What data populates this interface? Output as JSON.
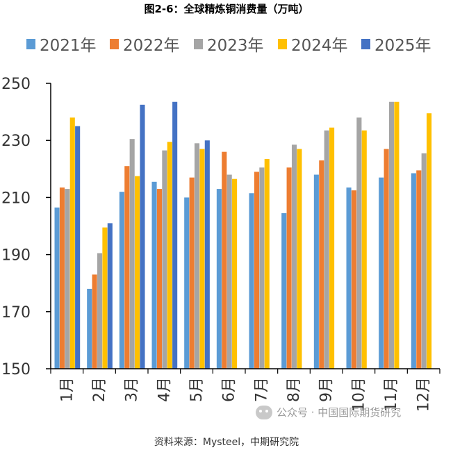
{
  "chart_data": {
    "type": "bar",
    "title": "图2-6：全球精炼铜消费量（万吨）",
    "source": "资料来源：Mysteel，中期研究院",
    "watermark": "公众号 · 中国国际期货研究",
    "categories": [
      "1月",
      "2月",
      "3月",
      "4月",
      "5月",
      "6月",
      "7月",
      "8月",
      "9月",
      "10月",
      "11月",
      "12月"
    ],
    "ylim": [
      150,
      250
    ],
    "yticks": [
      150,
      170,
      190,
      210,
      230,
      250
    ],
    "legend_position": "top",
    "grid": false,
    "series": [
      {
        "name": "2021年",
        "color": "#5b9bd5",
        "values": [
          206.5,
          178,
          212,
          215.5,
          210,
          213,
          211.5,
          204.5,
          218,
          213.5,
          217,
          218.5
        ]
      },
      {
        "name": "2022年",
        "color": "#ed7d31",
        "values": [
          213.5,
          183,
          221,
          213,
          217,
          226,
          219,
          220.5,
          223,
          212.5,
          227,
          219.5
        ]
      },
      {
        "name": "2023年",
        "color": "#a5a5a5",
        "values": [
          213,
          190.5,
          230.5,
          226.5,
          229,
          218,
          220.5,
          228.5,
          233.5,
          238,
          243.5,
          225.5
        ]
      },
      {
        "name": "2024年",
        "color": "#ffc000",
        "values": [
          238,
          199.5,
          217.5,
          229.5,
          227,
          216.5,
          223.5,
          227,
          234.5,
          233.5,
          243.5,
          239.5
        ]
      },
      {
        "name": "2025年",
        "color": "#4472c4",
        "values": [
          235,
          201,
          242.5,
          243.5,
          230,
          null,
          null,
          null,
          null,
          null,
          null,
          null
        ]
      }
    ]
  }
}
